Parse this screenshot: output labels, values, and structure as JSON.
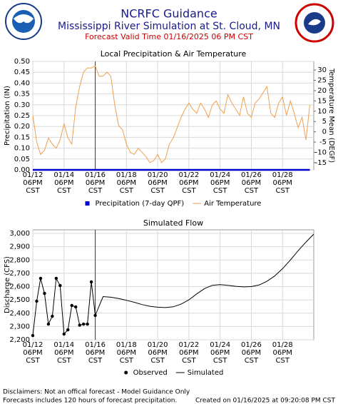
{
  "header": {
    "title": "NCRFC Guidance",
    "subtitle": "Mississippi River Simulation at St. Cloud, MN",
    "valid_time": "Forecast Valid Time 01/16/2025 06 PM CST"
  },
  "chart_data": [
    {
      "type": "line",
      "title": "Local Precipitation & Air Temperature",
      "ylabel": "Precipitation (IN)",
      "y2label": "Temperature Mean (DEGF)",
      "xlim": [
        "01/12 06PM",
        "01/30 06PM"
      ],
      "xticks": [
        {
          "value": "01/12 06PM",
          "label": "01/12\n06PM\nCST"
        },
        {
          "value": "01/14 06PM",
          "label": "01/14\n06PM\nCST"
        },
        {
          "value": "01/16 06PM",
          "label": "01/16\n06PM\nCST"
        },
        {
          "value": "01/18 06PM",
          "label": "01/18\n06PM\nCST"
        },
        {
          "value": "01/20 06PM",
          "label": "01/20\n06PM\nCST"
        },
        {
          "value": "01/22 06PM",
          "label": "01/22\n06PM\nCST"
        },
        {
          "value": "01/24 06PM",
          "label": "01/24\n06PM\nCST"
        },
        {
          "value": "01/26 06PM",
          "label": "01/26\n06PM\nCST"
        },
        {
          "value": "01/28 06PM",
          "label": "01/28\n06PM\nCST"
        }
      ],
      "ylim": [
        0,
        0.5
      ],
      "yticks": [
        {
          "value": 0,
          "label": "0.00"
        },
        0.05,
        {
          "value": 0.1,
          "label": "0.10"
        },
        0.15,
        {
          "value": 0.2,
          "label": "0.20"
        },
        0.25,
        {
          "value": 0.3,
          "label": "0.30"
        },
        0.35,
        {
          "value": 0.4,
          "label": "0.40"
        },
        0.45,
        {
          "value": 0.5,
          "label": "0.50"
        }
      ],
      "y2lim": [
        -18.5,
        34.2
      ],
      "y2ticks": [
        -15,
        -10,
        -5,
        0,
        5,
        10,
        15,
        20,
        25,
        30
      ],
      "grid": true,
      "forecast_line": "01/16 06PM",
      "x": [
        "01/12 06PM",
        "01/13 12AM",
        "01/13 06AM",
        "01/13 12PM",
        "01/13 06PM",
        "01/14 12AM",
        "01/14 06AM",
        "01/14 12PM",
        "01/14 06PM",
        "01/15 12AM",
        "01/15 06AM",
        "01/15 12PM",
        "01/15 06PM",
        "01/16 12AM",
        "01/16 06AM",
        "01/16 12PM",
        "01/16 06PM",
        "01/17 12AM",
        "01/17 06AM",
        "01/17 12PM",
        "01/17 06PM",
        "01/18 12AM",
        "01/18 06AM",
        "01/18 12PM",
        "01/18 06PM",
        "01/19 12AM",
        "01/19 06AM",
        "01/19 12PM",
        "01/19 06PM",
        "01/20 12AM",
        "01/20 06AM",
        "01/20 12PM",
        "01/20 06PM",
        "01/21 12AM",
        "01/21 06AM",
        "01/21 12PM",
        "01/21 06PM",
        "01/22 12AM",
        "01/22 06AM",
        "01/22 12PM",
        "01/22 06PM",
        "01/23 12AM",
        "01/23 06AM",
        "01/23 12PM",
        "01/23 06PM",
        "01/24 12AM",
        "01/24 06AM",
        "01/24 12PM",
        "01/24 06PM",
        "01/25 12AM",
        "01/25 06AM",
        "01/25 12PM",
        "01/25 06PM",
        "01/26 12AM",
        "01/26 06AM",
        "01/26 12PM",
        "01/26 06PM",
        "01/27 12AM",
        "01/27 06AM",
        "01/27 12PM",
        "01/27 06PM",
        "01/28 12AM",
        "01/28 06AM",
        "01/28 12PM",
        "01/28 06PM",
        "01/29 12AM",
        "01/29 06AM",
        "01/29 12PM",
        "01/29 06PM",
        "01/30 12AM",
        "01/30 06AM",
        "01/30 12PM"
      ],
      "series": [
        {
          "name": "Precipitation (7-day QPF)",
          "color": "#0000cc",
          "legend_marker": "square",
          "values": [
            0,
            0,
            0,
            0,
            0,
            0,
            0,
            0,
            0,
            0,
            0,
            0,
            0,
            0,
            0,
            0,
            0,
            0,
            0,
            0,
            0,
            0,
            0,
            0,
            0,
            0,
            0,
            0,
            0,
            0,
            0,
            0,
            0,
            0,
            0,
            0,
            0,
            0,
            0,
            0,
            0,
            0,
            0,
            0,
            0,
            0,
            0,
            0,
            0,
            0,
            0,
            0,
            0,
            0,
            0,
            0,
            0,
            0,
            0,
            0,
            0,
            0,
            0,
            0,
            0,
            0,
            0,
            0,
            0,
            0,
            0,
            0
          ]
        },
        {
          "name": "Air Temperature",
          "color": "#f0a050",
          "axis": "y2",
          "legend_marker": "line",
          "values": [
            8,
            -5,
            -11,
            -9,
            -3,
            -6,
            -8,
            -4,
            4,
            -3,
            -6,
            12,
            22,
            29,
            31,
            31,
            32,
            27,
            27,
            29,
            27,
            13,
            3,
            1,
            -6,
            -10,
            -11,
            -8,
            -10,
            -12,
            -15,
            -14,
            -11,
            -15,
            -13,
            -6,
            -3,
            2,
            7,
            11,
            14,
            11,
            9,
            14,
            11,
            7,
            13,
            15,
            11,
            9,
            18,
            14,
            11,
            8,
            17,
            9,
            7,
            14,
            16,
            19,
            22,
            9,
            7,
            14,
            17,
            8,
            15,
            9,
            2,
            7,
            -4,
            13
          ]
        }
      ]
    },
    {
      "type": "line",
      "title": "Simulated Flow",
      "ylabel": "Discharge (CFS)",
      "xlim": [
        "01/12 06PM",
        "01/30 06PM"
      ],
      "xticks": [
        {
          "value": "01/12 06PM",
          "label": "01/12\n06PM\nCST"
        },
        {
          "value": "01/14 06PM",
          "label": "01/14\n06PM\nCST"
        },
        {
          "value": "01/16 06PM",
          "label": "01/16\n06PM\nCST"
        },
        {
          "value": "01/18 06PM",
          "label": "01/18\n06PM\nCST"
        },
        {
          "value": "01/20 06PM",
          "label": "01/20\n06PM\nCST"
        },
        {
          "value": "01/22 06PM",
          "label": "01/22\n06PM\nCST"
        },
        {
          "value": "01/24 06PM",
          "label": "01/24\n06PM\nCST"
        },
        {
          "value": "01/26 06PM",
          "label": "01/26\n06PM\nCST"
        },
        {
          "value": "01/28 06PM",
          "label": "01/28\n06PM\nCST"
        }
      ],
      "ylim": [
        2200,
        3027
      ],
      "yticks": [
        {
          "value": 2200,
          "label": "2,200"
        },
        {
          "value": 2300,
          "label": "2,300"
        },
        {
          "value": 2400,
          "label": "2,400"
        },
        {
          "value": 2500,
          "label": "2,500"
        },
        {
          "value": 2600,
          "label": "2,600"
        },
        {
          "value": 2700,
          "label": "2,700"
        },
        {
          "value": 2800,
          "label": "2,800"
        },
        {
          "value": 2900,
          "label": "2,900"
        },
        {
          "value": 3000,
          "label": "3,000"
        }
      ],
      "grid": true,
      "forecast_line": "01/16 06PM",
      "series": [
        {
          "name": "Observed",
          "color": "#000000",
          "markers": true,
          "legend_marker": "dot",
          "x": [
            "01/12 06PM",
            "01/13 12AM",
            "01/13 06AM",
            "01/13 12PM",
            "01/13 06PM",
            "01/14 12AM",
            "01/14 06AM",
            "01/14 12PM",
            "01/14 06PM",
            "01/15 12AM",
            "01/15 06AM",
            "01/15 12PM",
            "01/15 06PM",
            "01/16 12AM",
            "01/16 06AM",
            "01/16 12PM",
            "01/16 06PM"
          ],
          "values": [
            2232,
            2490,
            2662,
            2549,
            2318,
            2377,
            2662,
            2608,
            2243,
            2275,
            2458,
            2447,
            2310,
            2318,
            2318,
            2635,
            2383
          ]
        },
        {
          "name": "Simulated",
          "color": "#000000",
          "legend_marker": "line",
          "x": [
            "01/16 06PM",
            "01/17 06AM",
            "01/17 06PM",
            "01/18 06AM",
            "01/18 06PM",
            "01/19 06AM",
            "01/19 06PM",
            "01/20 06AM",
            "01/20 06PM",
            "01/21 06AM",
            "01/21 06PM",
            "01/22 06AM",
            "01/22 06PM",
            "01/23 06AM",
            "01/23 06PM",
            "01/24 06AM",
            "01/24 06PM",
            "01/25 06AM",
            "01/25 06PM",
            "01/26 06AM",
            "01/26 06PM",
            "01/27 06AM",
            "01/27 06PM",
            "01/28 06AM",
            "01/28 06PM",
            "01/29 06AM",
            "01/29 06PM",
            "01/30 06AM",
            "01/30 06PM"
          ],
          "values": [
            2383,
            2525,
            2520,
            2510,
            2497,
            2482,
            2465,
            2452,
            2445,
            2442,
            2448,
            2468,
            2500,
            2545,
            2585,
            2610,
            2615,
            2610,
            2602,
            2598,
            2600,
            2612,
            2640,
            2680,
            2735,
            2800,
            2870,
            2935,
            2995
          ]
        }
      ]
    }
  ],
  "footer": {
    "disclaimer": "Disclaimers: Not an offical forecast - Model Guidance Only",
    "note": "Forecasts includes 120 hours of forecast precipitation.",
    "created": "Created on 01/16/2025 at 09:20:08 PM CST"
  }
}
